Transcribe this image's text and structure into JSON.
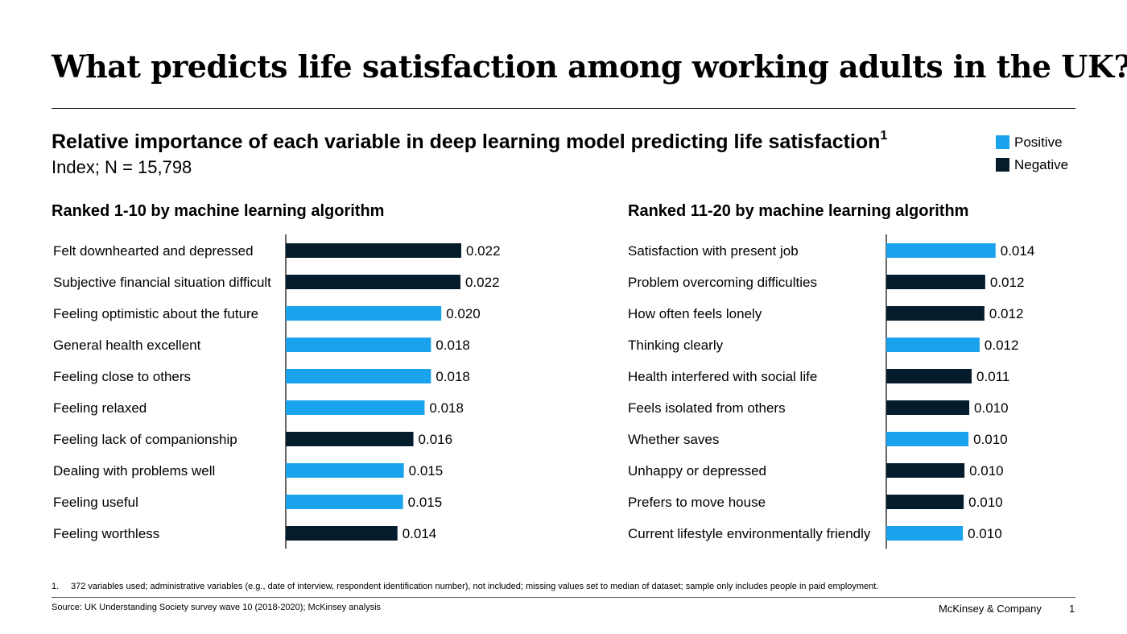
{
  "title": "What predicts life satisfaction among working adults in the UK?",
  "subtitle": "Relative importance of each variable in deep learning model predicting life satisfaction",
  "subtitle_footnote_mark": "1",
  "index_line": "Index; N = 15,798",
  "legend": {
    "positive": {
      "label": "Positive",
      "color": "#1aa3ec"
    },
    "negative": {
      "label": "Negative",
      "color": "#051c2c"
    }
  },
  "chart_data": [
    {
      "type": "bar",
      "orientation": "horizontal",
      "title": "Ranked 1-10 by machine learning algorithm",
      "categories": [
        "Felt downhearted and depressed",
        "Subjective financial situation difficult",
        "Feeling optimistic about the future",
        "General health excellent",
        "Feeling close to others",
        "Feeling relaxed",
        "Feeling lack of companionship",
        "Dealing with problems well",
        "Feeling useful",
        "Feeling worthless"
      ],
      "values": [
        0.022,
        0.022,
        0.02,
        0.018,
        0.018,
        0.018,
        0.016,
        0.015,
        0.015,
        0.014
      ],
      "value_labels": [
        "0.022",
        "0.022",
        "0.020",
        "0.018",
        "0.018",
        "0.018",
        "0.016",
        "0.015",
        "0.015",
        "0.014"
      ],
      "bar_lengths": [
        0.022,
        0.0219,
        0.0195,
        0.0182,
        0.0182,
        0.0174,
        0.016,
        0.0148,
        0.0147,
        0.014
      ],
      "direction": [
        "negative",
        "negative",
        "positive",
        "positive",
        "positive",
        "positive",
        "negative",
        "positive",
        "positive",
        "negative"
      ]
    },
    {
      "type": "bar",
      "orientation": "horizontal",
      "title": "Ranked 11-20 by machine learning algorithm",
      "categories": [
        "Satisfaction with present job",
        "Problem overcoming difficulties",
        "How often feels lonely",
        "Thinking clearly",
        "Health interfered with social life",
        "Feels isolated from others",
        "Whether saves",
        "Unhappy or depressed",
        "Prefers to move house",
        "Current lifestyle environmentally friendly"
      ],
      "values": [
        0.014,
        0.012,
        0.012,
        0.012,
        0.011,
        0.01,
        0.01,
        0.01,
        0.01,
        0.01
      ],
      "value_labels": [
        "0.014",
        "0.012",
        "0.012",
        "0.012",
        "0.011",
        "0.010",
        "0.010",
        "0.010",
        "0.010",
        "0.010"
      ],
      "bar_lengths": [
        0.0137,
        0.0124,
        0.0123,
        0.0117,
        0.0107,
        0.0104,
        0.0103,
        0.0098,
        0.0097,
        0.0096
      ],
      "direction": [
        "positive",
        "negative",
        "negative",
        "positive",
        "negative",
        "negative",
        "positive",
        "negative",
        "negative",
        "positive"
      ]
    }
  ],
  "footnote": {
    "number": "1.",
    "text": "372 variables used; administrative variables (e.g., date of interview, respondent identification number), not included; missing values set to median of dataset; sample only includes people in paid employment."
  },
  "source": "Source: UK Understanding Society survey wave 10 (2018-2020); McKinsey analysis",
  "brand": "McKinsey & Company",
  "page_number": "1"
}
